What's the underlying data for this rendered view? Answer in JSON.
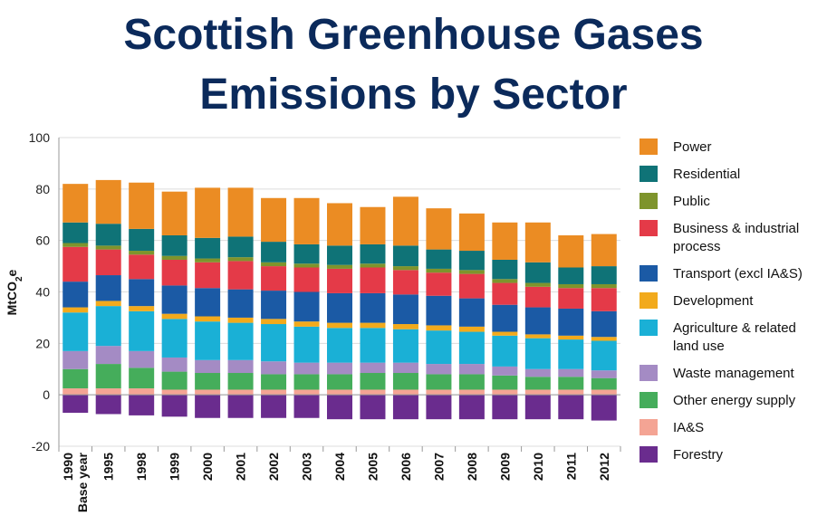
{
  "chart_data": {
    "type": "bar",
    "stacked": true,
    "title_line1": "Scottish Greenhouse Gases",
    "title_line2": "Emissions by Sector",
    "ylabel": "MtCO",
    "ylabel_sub": "2",
    "ylabel_suffix": "e",
    "ylim": [
      -20,
      100
    ],
    "yticks": [
      -20,
      0,
      20,
      40,
      60,
      80,
      100
    ],
    "grid": true,
    "legend_position": "right",
    "categories": [
      [
        "1990",
        "Base year"
      ],
      [
        "1995"
      ],
      [
        "1998"
      ],
      [
        "1999"
      ],
      [
        "2000"
      ],
      [
        "2001"
      ],
      [
        "2002"
      ],
      [
        "2003"
      ],
      [
        "2004"
      ],
      [
        "2005"
      ],
      [
        "2006"
      ],
      [
        "2007"
      ],
      [
        "2008"
      ],
      [
        "2009"
      ],
      [
        "2010"
      ],
      [
        "2011"
      ],
      [
        "2012"
      ]
    ],
    "series": [
      {
        "name": [
          "Forestry"
        ],
        "color": "#6a2c8e",
        "values": [
          -7,
          -7.5,
          -8,
          -8.5,
          -9,
          -9,
          -9,
          -9,
          -9.5,
          -9.5,
          -9.5,
          -9.5,
          -9.5,
          -9.5,
          -9.5,
          -9.5,
          -10
        ]
      },
      {
        "name": [
          "IA&S"
        ],
        "color": "#f4a494",
        "values": [
          2.5,
          2.5,
          2.5,
          2,
          2,
          2,
          2,
          2,
          2,
          2,
          2,
          2,
          2,
          2,
          2,
          2,
          2
        ]
      },
      {
        "name": [
          "Other energy supply"
        ],
        "color": "#45ad5b",
        "values": [
          7.5,
          9.5,
          8,
          7,
          6.5,
          6.5,
          6,
          6,
          6,
          6.5,
          6.5,
          6,
          6,
          5.5,
          5,
          5,
          4.5
        ]
      },
      {
        "name": [
          "Waste management"
        ],
        "color": "#a48bc4",
        "values": [
          7,
          7,
          6.5,
          5.5,
          5,
          5,
          5,
          4.5,
          4.5,
          4,
          4,
          4,
          4,
          3.5,
          3,
          3,
          3
        ]
      },
      {
        "name": [
          "Agriculture & related",
          "land use"
        ],
        "color": "#1ab0d6",
        "values": [
          15,
          15.5,
          15.5,
          15,
          15,
          14.5,
          14.5,
          14,
          13.5,
          13.5,
          13,
          13,
          12.5,
          12,
          12,
          11.5,
          11.5
        ]
      },
      {
        "name": [
          "Development"
        ],
        "color": "#f2aa1c",
        "values": [
          2,
          2,
          2,
          2,
          2,
          2,
          2,
          2,
          2,
          2,
          2,
          2,
          2,
          1.5,
          1.5,
          1.5,
          1.5
        ]
      },
      {
        "name": [
          "Transport (excl IA&S)"
        ],
        "color": "#1b5aa5",
        "values": [
          10,
          10,
          10.5,
          11,
          11,
          11,
          11,
          11.5,
          11.5,
          11.5,
          11.5,
          11.5,
          11,
          10.5,
          10.5,
          10.5,
          10
        ]
      },
      {
        "name": [
          "Business & industrial",
          "process"
        ],
        "color": "#e43a48",
        "values": [
          13.5,
          10,
          9.5,
          10,
          10,
          11,
          9.5,
          9.5,
          9.5,
          10,
          9.5,
          9,
          9.5,
          8.5,
          8,
          8,
          9
        ]
      },
      {
        "name": [
          "Public"
        ],
        "color": "#7e942c",
        "values": [
          1.5,
          1.5,
          1.5,
          1.5,
          1.5,
          1.5,
          1.5,
          1.5,
          1.5,
          1.5,
          1.5,
          1.5,
          1.5,
          1.5,
          1.5,
          1.5,
          1.5
        ]
      },
      {
        "name": [
          "Residential"
        ],
        "color": "#0f7377",
        "values": [
          8,
          8.5,
          8.5,
          8,
          8,
          8,
          8,
          7.5,
          7.5,
          7.5,
          8,
          7.5,
          7.5,
          7.5,
          8,
          6.5,
          7
        ]
      },
      {
        "name": [
          "Power"
        ],
        "color": "#eb8c23",
        "values": [
          15,
          17,
          18,
          17,
          19.5,
          19,
          17,
          18,
          16.5,
          14.5,
          19,
          16,
          14.5,
          14.5,
          15.5,
          12.5,
          12.5
        ]
      }
    ]
  }
}
